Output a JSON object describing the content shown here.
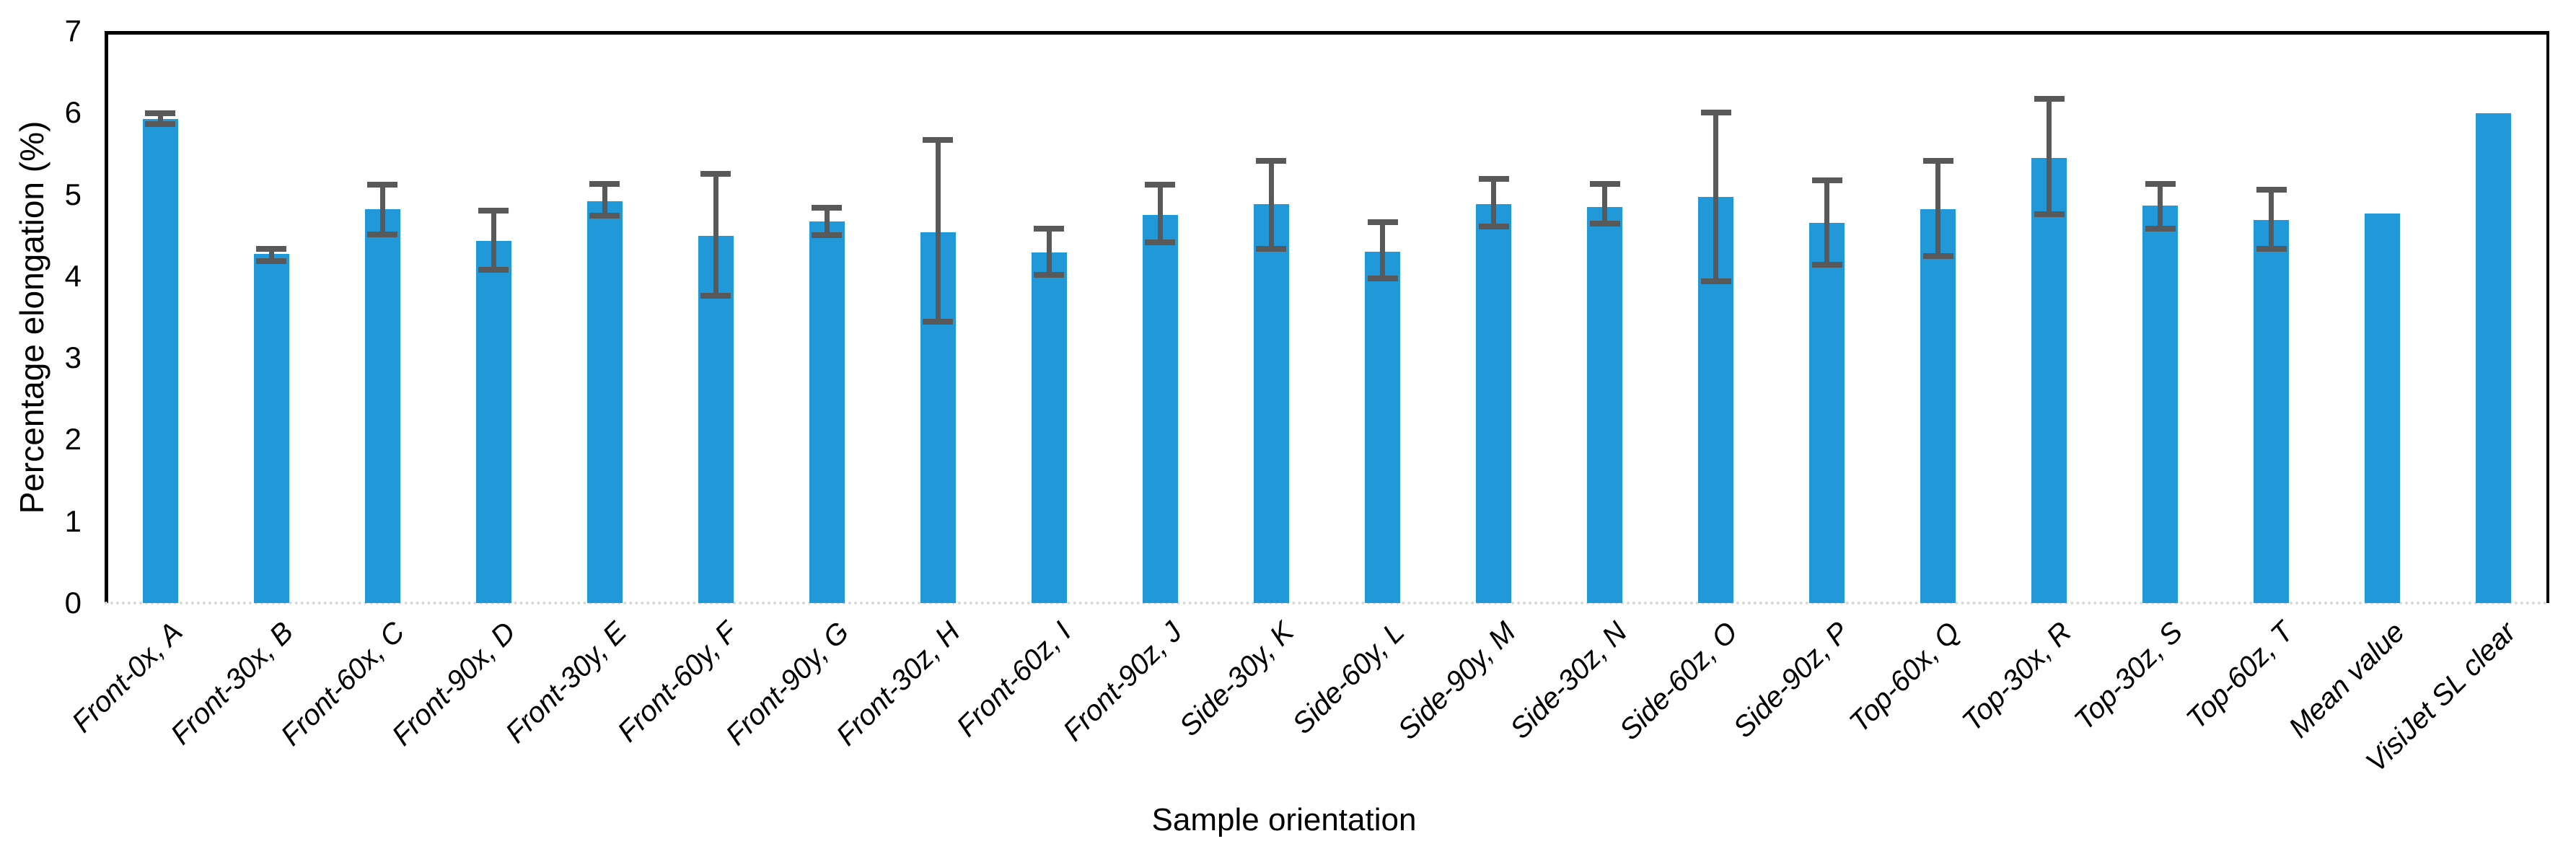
{
  "chart_data": {
    "type": "bar",
    "title": "",
    "xlabel": "Sample orientation",
    "ylabel": "Percentage elongation (%)",
    "ylim": [
      0,
      7
    ],
    "ytick_step": 1,
    "grid": false,
    "legend": false,
    "bar_color": "#2199d8",
    "error_bar_color": "#595959",
    "x_label_rotation_deg": -45,
    "x_label_style": "italic",
    "categories": [
      "Front-0x, A",
      "Front-30x, B",
      "Front-60x, C",
      "Front-90x, D",
      "Front-30y, E",
      "Front-60y, F",
      "Front-90y, G",
      "Front-30z, H",
      "Front-60z, I",
      "Front-90z, J",
      "Side-30y, K",
      "Side-60y, L",
      "Side-90y, M",
      "Side-30z, N",
      "Side-60z, O",
      "Side-90z, P",
      "Top-60x, Q",
      "Top-30x, R",
      "Top-30z, S",
      "Top-60z, T",
      "Mean value",
      "VisiJet SL clear"
    ],
    "values": [
      5.92,
      4.27,
      4.82,
      4.43,
      4.92,
      4.49,
      4.67,
      4.54,
      4.29,
      4.75,
      4.88,
      4.3,
      4.88,
      4.85,
      4.97,
      4.65,
      4.82,
      5.45,
      4.86,
      4.69,
      4.77,
      5.99
    ],
    "error_up": [
      0.07,
      0.06,
      0.3,
      0.37,
      0.21,
      0.76,
      0.17,
      1.13,
      0.29,
      0.37,
      0.53,
      0.36,
      0.31,
      0.28,
      1.03,
      0.52,
      0.59,
      0.72,
      0.27,
      0.37,
      null,
      null
    ],
    "error_down": [
      0.06,
      0.09,
      0.31,
      0.35,
      0.18,
      0.73,
      0.17,
      1.1,
      0.27,
      0.34,
      0.55,
      0.33,
      0.27,
      0.21,
      1.03,
      0.51,
      0.57,
      0.69,
      0.28,
      0.36,
      null,
      null
    ],
    "ytick_labels": [
      "0",
      "1",
      "2",
      "3",
      "4",
      "5",
      "6",
      "7"
    ]
  }
}
